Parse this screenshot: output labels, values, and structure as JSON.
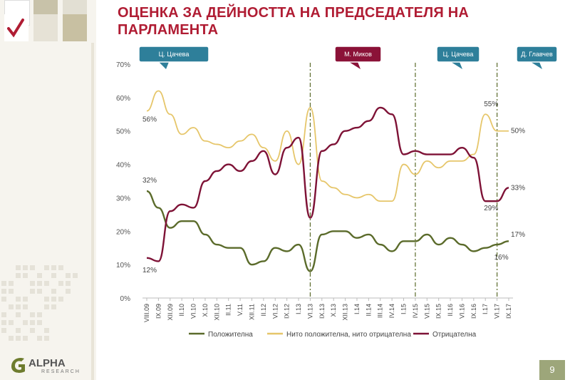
{
  "title": "ОЦЕНКА ЗА ДЕЙНОСТТА НА ПРЕДСЕДАТЕЛЯ НА ПАРЛАМЕНТА",
  "page_number": "9",
  "logo": {
    "name": "ALPHA",
    "sub": "RESEARCH"
  },
  "colors": {
    "title": "#b01c33",
    "positive": "#5b6b2b",
    "neutral": "#e6c66a",
    "negative": "#7e1236",
    "callout_blue": "#2e7f9a",
    "callout_red": "#8b1238",
    "page_box": "#9da67a"
  },
  "chart_data": {
    "type": "line",
    "title": "",
    "ylabel": "",
    "ylim": [
      0,
      70
    ],
    "yticks": [
      "0%",
      "10%",
      "20%",
      "30%",
      "40%",
      "50%",
      "60%",
      "70%"
    ],
    "x_tick_labels": [
      "VIII.09",
      "IX.09",
      "XII.09",
      "II.10",
      "VI.10",
      "X.10",
      "XII.10",
      "II.11",
      "V.11",
      "XII.11",
      "II.12",
      "VI.12",
      "IX.12",
      "I.13",
      "VI.13",
      "IX.13",
      "X.13",
      "XII.13",
      "I.14",
      "II.14",
      "III.14",
      "IV.14",
      "I.15",
      "IV.15",
      "VI.15",
      "IX.15",
      "II.16",
      "VI.16",
      "IX.16",
      "I.17",
      "VI.17",
      "IX.17"
    ],
    "series": [
      {
        "name": "Положителна",
        "values": [
          32,
          27,
          21,
          23,
          23,
          19,
          16,
          15,
          15,
          10,
          11,
          15,
          14,
          16,
          8,
          19,
          20,
          20,
          18,
          19,
          16,
          14,
          17,
          17,
          19,
          16,
          18,
          16,
          14,
          15,
          16,
          17
        ],
        "start_label": "32%",
        "end_label": "17%"
      },
      {
        "name": "Нито положителна, нито отрицателна",
        "values": [
          56,
          62,
          55,
          49,
          51,
          47,
          46,
          45,
          47,
          49,
          45,
          41,
          50,
          40,
          57,
          35,
          33,
          31,
          30,
          31,
          29,
          29,
          40,
          37,
          41,
          39,
          41,
          41,
          43,
          55,
          50,
          50
        ],
        "start_label": "56%",
        "end_label": "50%",
        "peak_label": "55%"
      },
      {
        "name": "Отрицателна",
        "values": [
          12,
          11,
          26,
          28,
          27,
          35,
          38,
          40,
          38,
          41,
          44,
          37,
          45,
          48,
          24,
          44,
          46,
          50,
          51,
          53,
          57,
          55,
          43,
          44,
          43,
          43,
          43,
          45,
          42,
          29,
          29,
          33
        ],
        "start_label": "12%",
        "end_label": "33%",
        "dip_label": "29%"
      }
    ],
    "vlines": [
      "VI.13",
      "IV.15",
      "VI.17"
    ],
    "callouts": [
      {
        "label": "Ц. Цачева",
        "style": "blue"
      },
      {
        "label": "М. Миков",
        "style": "red"
      },
      {
        "label": "Ц. Цачева",
        "style": "blue"
      },
      {
        "label": "Д. Главчев",
        "style": "blue"
      }
    ],
    "legend": [
      "Положителна",
      "Нито положителна, нито отрицателна",
      "Отрицателна"
    ],
    "legend_position": "bottom"
  }
}
